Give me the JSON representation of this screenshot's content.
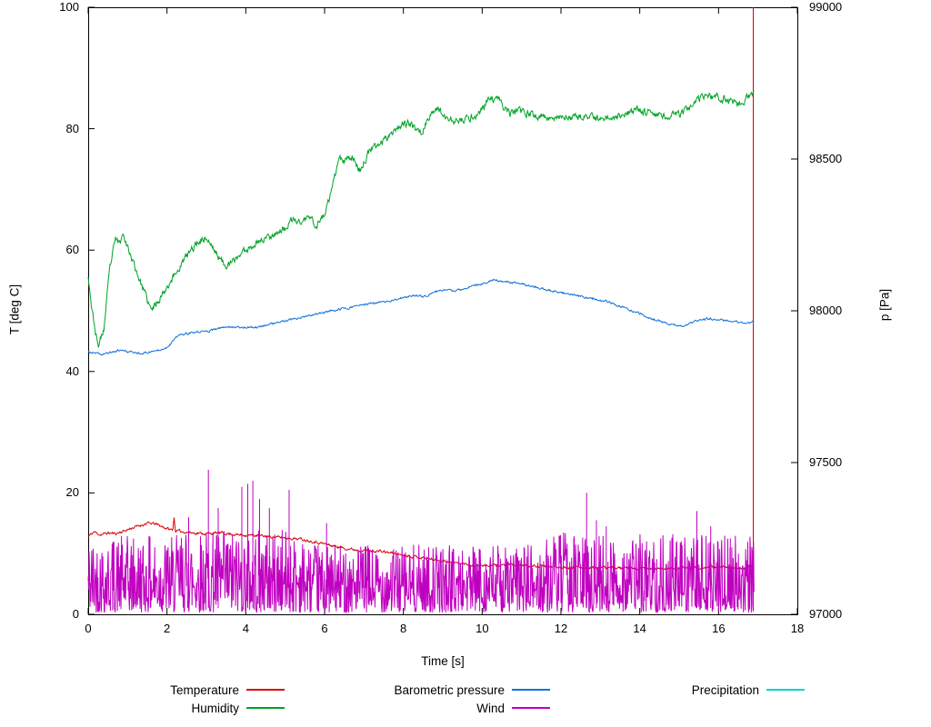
{
  "chart_data": {
    "type": "line",
    "title": "",
    "xlabel": "Time [s]",
    "ylabel_left": "T [deg C]",
    "ylabel_right": "p [Pa]",
    "xlim": [
      0,
      18
    ],
    "ylim_left": [
      0,
      100
    ],
    "ylim_right": [
      97000,
      99000
    ],
    "xticks": [
      0,
      2,
      4,
      6,
      8,
      10,
      12,
      14,
      16,
      18
    ],
    "yticks_left": [
      0,
      20,
      40,
      60,
      80,
      100
    ],
    "yticks_right": [
      97000,
      97500,
      98000,
      98500,
      99000
    ],
    "grid": false,
    "legend_position": "bottom",
    "x_end": 16.9,
    "series": [
      {
        "id": "temperature",
        "label": "Temperature",
        "color": "#dc0000",
        "axis": "left",
        "render": "line",
        "jitter": 0.25,
        "seed": 11,
        "keypoints": [
          [
            0,
            12.8
          ],
          [
            0.15,
            13.6
          ],
          [
            0.3,
            13.1
          ],
          [
            0.5,
            13.4
          ],
          [
            0.7,
            13.3
          ],
          [
            0.9,
            13.7
          ],
          [
            1.1,
            14.2
          ],
          [
            1.3,
            14.6
          ],
          [
            1.5,
            15.0
          ],
          [
            1.7,
            14.9
          ],
          [
            1.9,
            14.4
          ],
          [
            2.1,
            13.9
          ],
          [
            2.15,
            14.0
          ],
          [
            2.18,
            16.2
          ],
          [
            2.21,
            13.8
          ],
          [
            2.4,
            13.6
          ],
          [
            2.7,
            13.4
          ],
          [
            3.0,
            13.3
          ],
          [
            3.4,
            13.4
          ],
          [
            3.8,
            13.1
          ],
          [
            4.2,
            13.0
          ],
          [
            4.6,
            12.8
          ],
          [
            5.0,
            12.6
          ],
          [
            5.4,
            12.4
          ],
          [
            5.8,
            11.9
          ],
          [
            6.2,
            11.3
          ],
          [
            6.6,
            10.8
          ],
          [
            7.0,
            10.5
          ],
          [
            7.4,
            10.4
          ],
          [
            7.8,
            10.0
          ],
          [
            8.2,
            9.6
          ],
          [
            8.6,
            9.2
          ],
          [
            9.0,
            8.8
          ],
          [
            9.4,
            8.4
          ],
          [
            9.8,
            8.1
          ],
          [
            10.2,
            8.0
          ],
          [
            10.6,
            8.2
          ],
          [
            11.0,
            8.0
          ],
          [
            11.5,
            7.9
          ],
          [
            12.0,
            7.8
          ],
          [
            12.5,
            7.7
          ],
          [
            13.0,
            7.7
          ],
          [
            13.5,
            7.6
          ],
          [
            14.0,
            7.5
          ],
          [
            14.5,
            7.5
          ],
          [
            15.0,
            7.6
          ],
          [
            15.5,
            7.7
          ],
          [
            16.0,
            7.8
          ],
          [
            16.4,
            7.6
          ],
          [
            16.9,
            7.9
          ]
        ],
        "end_spike": {
          "x": 16.88,
          "from": 0.5,
          "to": 100
        }
      },
      {
        "id": "humidity",
        "label": "Humidity",
        "color": "#00a226",
        "axis": "left",
        "render": "line",
        "jitter": 0.7,
        "seed": 23,
        "keypoints": [
          [
            0,
            56
          ],
          [
            0.1,
            50
          ],
          [
            0.25,
            44
          ],
          [
            0.4,
            47
          ],
          [
            0.55,
            57
          ],
          [
            0.7,
            62
          ],
          [
            0.8,
            61
          ],
          [
            0.9,
            63
          ],
          [
            1.0,
            60.5
          ],
          [
            1.2,
            57
          ],
          [
            1.4,
            53.5
          ],
          [
            1.6,
            50
          ],
          [
            1.8,
            52
          ],
          [
            2.0,
            54
          ],
          [
            2.2,
            56
          ],
          [
            2.5,
            59
          ],
          [
            2.8,
            61.5
          ],
          [
            3.0,
            62
          ],
          [
            3.2,
            60
          ],
          [
            3.4,
            58
          ],
          [
            3.6,
            57.5
          ],
          [
            3.8,
            59
          ],
          [
            4.0,
            60
          ],
          [
            4.2,
            61
          ],
          [
            4.5,
            62
          ],
          [
            4.8,
            63
          ],
          [
            5.0,
            63.5
          ],
          [
            5.2,
            65
          ],
          [
            5.4,
            64.5
          ],
          [
            5.6,
            65.5
          ],
          [
            5.8,
            64
          ],
          [
            6.0,
            66
          ],
          [
            6.2,
            70
          ],
          [
            6.35,
            75
          ],
          [
            6.5,
            74.5
          ],
          [
            6.7,
            75.5
          ],
          [
            6.9,
            73
          ],
          [
            7.1,
            76
          ],
          [
            7.4,
            77.5
          ],
          [
            7.7,
            79.5
          ],
          [
            8.0,
            81
          ],
          [
            8.2,
            80.5
          ],
          [
            8.45,
            79.5
          ],
          [
            8.6,
            81
          ],
          [
            8.8,
            83.5
          ],
          [
            9.0,
            82.5
          ],
          [
            9.3,
            81
          ],
          [
            9.6,
            81.5
          ],
          [
            9.9,
            82.5
          ],
          [
            10.2,
            85
          ],
          [
            10.45,
            84.5
          ],
          [
            10.7,
            82.5
          ],
          [
            11.0,
            82.8
          ],
          [
            11.3,
            82.3
          ],
          [
            11.6,
            81.8
          ],
          [
            12.0,
            82
          ],
          [
            12.3,
            81.6
          ],
          [
            12.6,
            81.9
          ],
          [
            13.0,
            81.6
          ],
          [
            13.3,
            82
          ],
          [
            13.6,
            82.4
          ],
          [
            14.0,
            83.2
          ],
          [
            14.3,
            82.6
          ],
          [
            14.7,
            82
          ],
          [
            15.0,
            82.5
          ],
          [
            15.3,
            83.5
          ],
          [
            15.6,
            85.3
          ],
          [
            15.9,
            85.2
          ],
          [
            16.2,
            84.8
          ],
          [
            16.5,
            84.2
          ],
          [
            16.7,
            84.8
          ],
          [
            16.9,
            86
          ]
        ]
      },
      {
        "id": "pressure",
        "label": "Barometric pressure",
        "color": "#1072d8",
        "axis": "right",
        "render": "line",
        "jitter": 4,
        "seed": 37,
        "keypoints": [
          [
            0,
            97864
          ],
          [
            0.35,
            97856
          ],
          [
            0.8,
            97870
          ],
          [
            1.1,
            97864
          ],
          [
            1.4,
            97860
          ],
          [
            1.7,
            97868
          ],
          [
            2.0,
            97880
          ],
          [
            2.3,
            97920
          ],
          [
            2.7,
            97928
          ],
          [
            3.1,
            97934
          ],
          [
            3.5,
            97948
          ],
          [
            3.9,
            97946
          ],
          [
            4.3,
            97946
          ],
          [
            4.6,
            97956
          ],
          [
            5.0,
            97966
          ],
          [
            5.4,
            97976
          ],
          [
            5.8,
            97990
          ],
          [
            6.2,
            98000
          ],
          [
            6.6,
            98010
          ],
          [
            7.0,
            98020
          ],
          [
            7.3,
            98026
          ],
          [
            7.6,
            98030
          ],
          [
            8.0,
            98042
          ],
          [
            8.3,
            98052
          ],
          [
            8.5,
            98046
          ],
          [
            9.0,
            98070
          ],
          [
            9.3,
            98064
          ],
          [
            9.7,
            98080
          ],
          [
            10.0,
            98090
          ],
          [
            10.3,
            98100
          ],
          [
            10.6,
            98096
          ],
          [
            11.0,
            98088
          ],
          [
            11.3,
            98080
          ],
          [
            11.6,
            98070
          ],
          [
            12.0,
            98060
          ],
          [
            12.4,
            98050
          ],
          [
            12.8,
            98040
          ],
          [
            13.2,
            98030
          ],
          [
            13.6,
            98010
          ],
          [
            14.0,
            97990
          ],
          [
            14.4,
            97970
          ],
          [
            14.8,
            97954
          ],
          [
            15.1,
            97950
          ],
          [
            15.4,
            97964
          ],
          [
            15.7,
            97974
          ],
          [
            16.0,
            97970
          ],
          [
            16.4,
            97964
          ],
          [
            16.7,
            97960
          ],
          [
            16.9,
            97966
          ]
        ]
      },
      {
        "id": "wind",
        "label": "Wind",
        "color": "#c000c0",
        "axis": "left",
        "render": "noise",
        "floor": 0.3,
        "seed": 42,
        "envelope": [
          [
            0,
            13
          ],
          [
            2.2,
            13
          ],
          [
            2.4,
            14
          ],
          [
            5.3,
            14
          ],
          [
            5.6,
            11.5
          ],
          [
            11.4,
            11.5
          ],
          [
            11.8,
            13.5
          ],
          [
            16.9,
            13
          ]
        ],
        "spikes": [
          [
            2.55,
            16
          ],
          [
            3.05,
            23.8
          ],
          [
            3.3,
            17.5
          ],
          [
            3.9,
            21
          ],
          [
            4.05,
            21.5
          ],
          [
            4.18,
            22
          ],
          [
            4.35,
            19
          ],
          [
            4.6,
            17.5
          ],
          [
            5.1,
            20.5
          ],
          [
            6.05,
            15
          ],
          [
            12.65,
            20
          ],
          [
            12.9,
            15.5
          ],
          [
            13.15,
            14.5
          ],
          [
            15.45,
            17
          ],
          [
            15.8,
            14.5
          ],
          [
            16.3,
            12.5
          ]
        ]
      },
      {
        "id": "precipitation",
        "label": "Precipitation",
        "color": "#00d0d0",
        "axis": "left",
        "render": "none",
        "visible": false
      }
    ]
  }
}
